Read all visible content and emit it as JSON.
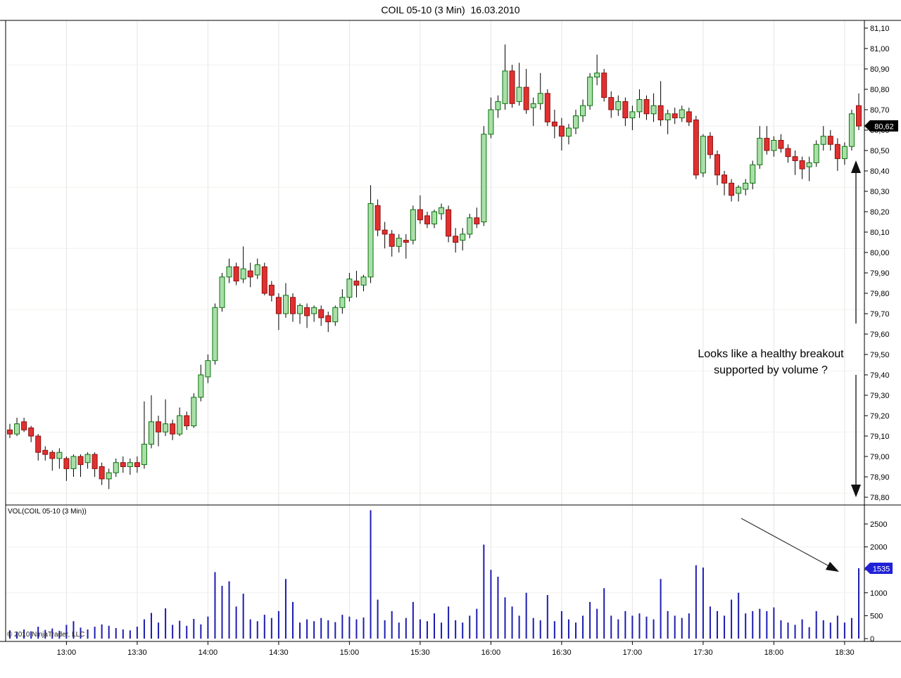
{
  "window": {
    "title": "COIL 05-10 (3 Min)  16.03.2010"
  },
  "volume_pane": {
    "indicator_label": "VOL(COIL 05-10 (3 Min))",
    "copyright": "© 2010 NinjaTrader, LLC"
  },
  "annotation": {
    "line1": "Looks like a healthy breakout",
    "line2": "supported by volume ?"
  },
  "price_axis": {
    "ticks": [
      "81,10",
      "81,00",
      "80,90",
      "80,80",
      "80,70",
      "80,60",
      "80,50",
      "80,40",
      "80,30",
      "80,20",
      "80,10",
      "80,00",
      "79,90",
      "79,80",
      "79,70",
      "79,60",
      "79,50",
      "79,40",
      "79,30",
      "79,20",
      "79,10",
      "79,00",
      "78,90",
      "78,80"
    ],
    "tag": "80,62"
  },
  "volume_axis": {
    "ticks": [
      "2500",
      "2000",
      "1500",
      "1000",
      "500",
      "0"
    ],
    "tick_values": [
      2500,
      2000,
      1500,
      1000,
      500,
      0
    ],
    "tag": "1535"
  },
  "time_axis": {
    "ticks": [
      "13:00",
      "13:30",
      "14:00",
      "14:30",
      "15:00",
      "15:30",
      "16:00",
      "16:30",
      "17:00",
      "17:30",
      "18:00",
      "18:30"
    ]
  },
  "colors": {
    "up_fill": "#A9DFA9",
    "up_border": "#0A720A",
    "down_fill": "#E03030",
    "down_border": "#8F1010",
    "wick": "#000000",
    "volume_bar": "#1C1CB0",
    "grid_vertical": "#E5E5E5",
    "grid_horizontal": "#F3F0EB",
    "price_tag_bg": "#000000",
    "volume_tag_bg": "#2121D6"
  },
  "chart_data": {
    "type": "candlestick_with_volume",
    "title": "COIL 05-10 (3 Min)  16.03.2010",
    "instrument": "COIL 05-10",
    "interval": "3 Min",
    "date": "16.03.2010",
    "price_axis_range": [
      78.75,
      81.15
    ],
    "price_tick_step": 0.1,
    "volume_axis_range": [
      0,
      2800
    ],
    "volume_tick_step": 500,
    "last_price": 80.62,
    "last_volume": 1535,
    "price_gridlines": [
      80.92,
      80.62,
      80.32,
      80.02,
      79.72,
      79.42,
      79.12,
      78.82
    ],
    "volume_gridlines": [
      1000,
      2000
    ],
    "bars_format": [
      "time",
      "open",
      "high",
      "low",
      "close",
      "volume"
    ],
    "bars": [
      [
        "12:36",
        79.13,
        79.16,
        79.09,
        79.11,
        180
      ],
      [
        "12:39",
        79.11,
        79.19,
        79.1,
        79.16,
        150
      ],
      [
        "12:42",
        79.17,
        79.19,
        79.12,
        79.13,
        200
      ],
      [
        "12:45",
        79.14,
        79.15,
        79.07,
        79.1,
        160
      ],
      [
        "12:48",
        79.1,
        79.11,
        78.98,
        79.02,
        260
      ],
      [
        "12:51",
        79.03,
        79.05,
        78.98,
        79.01,
        190
      ],
      [
        "12:54",
        79.02,
        79.03,
        78.93,
        78.99,
        220
      ],
      [
        "12:57",
        78.99,
        79.04,
        78.94,
        79.02,
        170
      ],
      [
        "13:00",
        78.99,
        79.0,
        78.88,
        78.94,
        300
      ],
      [
        "13:03",
        78.94,
        79.01,
        78.9,
        79.0,
        380
      ],
      [
        "13:06",
        79.0,
        79.01,
        78.9,
        78.96,
        240
      ],
      [
        "13:09",
        78.97,
        79.02,
        78.94,
        79.01,
        200
      ],
      [
        "13:12",
        79.01,
        79.02,
        78.9,
        78.94,
        260
      ],
      [
        "13:15",
        78.95,
        78.97,
        78.86,
        78.89,
        310
      ],
      [
        "13:18",
        78.89,
        78.94,
        78.84,
        78.92,
        280
      ],
      [
        "13:21",
        78.92,
        78.99,
        78.9,
        78.97,
        230
      ],
      [
        "13:24",
        78.97,
        79.0,
        78.92,
        78.95,
        200
      ],
      [
        "13:27",
        78.95,
        78.99,
        78.91,
        78.97,
        180
      ],
      [
        "13:30",
        78.97,
        79.0,
        78.92,
        78.95,
        260
      ],
      [
        "13:33",
        78.96,
        79.27,
        78.94,
        79.06,
        420
      ],
      [
        "13:36",
        79.06,
        79.3,
        79.04,
        79.17,
        560
      ],
      [
        "13:39",
        79.17,
        79.2,
        79.05,
        79.12,
        350
      ],
      [
        "13:42",
        79.12,
        79.28,
        79.1,
        79.16,
        660
      ],
      [
        "13:45",
        79.16,
        79.18,
        79.08,
        79.11,
        300
      ],
      [
        "13:48",
        79.11,
        79.24,
        79.1,
        79.2,
        390
      ],
      [
        "13:51",
        79.2,
        79.22,
        79.13,
        79.15,
        280
      ],
      [
        "13:54",
        79.15,
        79.31,
        79.14,
        79.29,
        430
      ],
      [
        "13:57",
        79.29,
        79.45,
        79.27,
        79.4,
        310
      ],
      [
        "14:00",
        79.39,
        79.5,
        79.36,
        79.47,
        480
      ],
      [
        "14:03",
        79.47,
        79.75,
        79.45,
        79.73,
        1450
      ],
      [
        "14:06",
        79.73,
        79.9,
        79.71,
        79.88,
        1150
      ],
      [
        "14:09",
        79.88,
        79.97,
        79.85,
        79.93,
        1250
      ],
      [
        "14:12",
        79.93,
        79.95,
        79.84,
        79.86,
        700
      ],
      [
        "14:15",
        79.87,
        80.03,
        79.85,
        79.92,
        980
      ],
      [
        "14:18",
        79.91,
        79.95,
        79.83,
        79.88,
        420
      ],
      [
        "14:21",
        79.89,
        79.97,
        79.87,
        79.94,
        380
      ],
      [
        "14:24",
        79.93,
        79.95,
        79.79,
        79.8,
        520
      ],
      [
        "14:27",
        79.84,
        79.86,
        79.76,
        79.79,
        450
      ],
      [
        "14:30",
        79.78,
        79.8,
        79.62,
        79.7,
        600
      ],
      [
        "14:33",
        79.7,
        79.85,
        79.68,
        79.79,
        1300
      ],
      [
        "14:36",
        79.78,
        79.8,
        79.66,
        79.7,
        800
      ],
      [
        "14:39",
        79.7,
        79.75,
        79.65,
        79.74,
        350
      ],
      [
        "14:42",
        79.73,
        79.75,
        79.63,
        79.69,
        420
      ],
      [
        "14:45",
        79.7,
        79.74,
        79.66,
        79.73,
        380
      ],
      [
        "14:48",
        79.72,
        79.74,
        79.64,
        79.68,
        450
      ],
      [
        "14:51",
        79.69,
        79.71,
        79.61,
        79.66,
        400
      ],
      [
        "14:54",
        79.66,
        79.74,
        79.64,
        79.73,
        360
      ],
      [
        "14:57",
        79.73,
        79.82,
        79.7,
        79.78,
        520
      ],
      [
        "15:00",
        79.78,
        79.9,
        79.76,
        79.87,
        480
      ],
      [
        "15:03",
        79.86,
        79.91,
        79.78,
        79.84,
        420
      ],
      [
        "15:06",
        79.84,
        79.89,
        79.81,
        79.88,
        460
      ],
      [
        "15:09",
        79.88,
        80.33,
        79.85,
        80.24,
        2800
      ],
      [
        "15:12",
        80.23,
        80.26,
        80.08,
        80.11,
        850
      ],
      [
        "15:15",
        80.11,
        80.15,
        80.02,
        80.09,
        400
      ],
      [
        "15:18",
        80.09,
        80.11,
        79.98,
        80.03,
        600
      ],
      [
        "15:21",
        80.03,
        80.09,
        80.0,
        80.07,
        350
      ],
      [
        "15:24",
        80.06,
        80.09,
        79.97,
        80.05,
        450
      ],
      [
        "15:27",
        80.06,
        80.23,
        80.04,
        80.21,
        800
      ],
      [
        "15:30",
        80.21,
        80.28,
        80.14,
        80.16,
        420
      ],
      [
        "15:33",
        80.18,
        80.2,
        80.12,
        80.14,
        380
      ],
      [
        "15:36",
        80.14,
        80.21,
        80.12,
        80.2,
        550
      ],
      [
        "15:39",
        80.19,
        80.24,
        80.16,
        80.22,
        350
      ],
      [
        "15:42",
        80.21,
        80.23,
        80.05,
        80.08,
        700
      ],
      [
        "15:45",
        80.08,
        80.12,
        80.0,
        80.05,
        400
      ],
      [
        "15:48",
        80.06,
        80.12,
        80.01,
        80.09,
        350
      ],
      [
        "15:51",
        80.09,
        80.19,
        80.07,
        80.17,
        500
      ],
      [
        "15:54",
        80.17,
        80.22,
        80.12,
        80.14,
        650
      ],
      [
        "15:57",
        80.15,
        80.62,
        80.13,
        80.58,
        2050
      ],
      [
        "16:00",
        80.58,
        80.76,
        80.56,
        80.7,
        1500
      ],
      [
        "16:03",
        80.7,
        80.77,
        80.66,
        80.74,
        1350
      ],
      [
        "16:06",
        80.73,
        81.02,
        80.7,
        80.89,
        900
      ],
      [
        "16:09",
        80.89,
        80.92,
        80.71,
        80.73,
        700
      ],
      [
        "16:12",
        80.74,
        80.93,
        80.72,
        80.81,
        500
      ],
      [
        "16:15",
        80.81,
        80.9,
        80.68,
        80.7,
        1000
      ],
      [
        "16:18",
        80.71,
        80.76,
        80.62,
        80.73,
        450
      ],
      [
        "16:21",
        80.73,
        80.88,
        80.7,
        80.78,
        400
      ],
      [
        "16:24",
        80.78,
        80.8,
        80.62,
        80.64,
        950
      ],
      [
        "16:27",
        80.64,
        80.7,
        80.56,
        80.62,
        380
      ],
      [
        "16:30",
        80.62,
        80.66,
        80.5,
        80.57,
        600
      ],
      [
        "16:33",
        80.57,
        80.63,
        80.53,
        80.61,
        420
      ],
      [
        "16:36",
        80.61,
        80.7,
        80.58,
        80.67,
        350
      ],
      [
        "16:39",
        80.67,
        80.75,
        80.64,
        80.72,
        500
      ],
      [
        "16:42",
        80.72,
        80.88,
        80.7,
        80.86,
        800
      ],
      [
        "16:45",
        80.86,
        80.97,
        80.82,
        80.88,
        650
      ],
      [
        "16:48",
        80.88,
        80.9,
        80.74,
        80.76,
        1100
      ],
      [
        "16:51",
        80.76,
        80.79,
        80.66,
        80.7,
        500
      ],
      [
        "16:54",
        80.7,
        80.77,
        80.67,
        80.74,
        420
      ],
      [
        "16:57",
        80.74,
        80.76,
        80.62,
        80.66,
        600
      ],
      [
        "17:00",
        80.66,
        80.72,
        80.6,
        80.69,
        500
      ],
      [
        "17:03",
        80.69,
        80.8,
        80.66,
        80.75,
        550
      ],
      [
        "17:06",
        80.75,
        80.77,
        80.65,
        80.68,
        480
      ],
      [
        "17:09",
        80.68,
        80.78,
        80.64,
        80.72,
        420
      ],
      [
        "17:12",
        80.72,
        80.84,
        80.62,
        80.65,
        1300
      ],
      [
        "17:15",
        80.65,
        80.7,
        80.58,
        80.68,
        600
      ],
      [
        "17:18",
        80.68,
        80.71,
        80.63,
        80.66,
        500
      ],
      [
        "17:21",
        80.66,
        80.72,
        80.64,
        80.7,
        450
      ],
      [
        "17:24",
        80.69,
        80.71,
        80.62,
        80.64,
        550
      ],
      [
        "17:27",
        80.65,
        80.67,
        80.36,
        80.38,
        1600
      ],
      [
        "17:30",
        80.39,
        80.58,
        80.37,
        80.57,
        1550
      ],
      [
        "17:33",
        80.57,
        80.59,
        80.46,
        80.48,
        700
      ],
      [
        "17:36",
        80.48,
        80.5,
        80.33,
        80.38,
        600
      ],
      [
        "17:39",
        80.38,
        80.4,
        80.28,
        80.34,
        500
      ],
      [
        "17:42",
        80.34,
        80.36,
        80.25,
        80.28,
        850
      ],
      [
        "17:45",
        80.29,
        80.33,
        80.25,
        80.32,
        1000
      ],
      [
        "17:48",
        80.31,
        80.36,
        80.28,
        80.34,
        550
      ],
      [
        "17:51",
        80.34,
        80.45,
        80.31,
        80.43,
        600
      ],
      [
        "17:54",
        80.43,
        80.62,
        80.41,
        80.56,
        650
      ],
      [
        "17:57",
        80.56,
        80.62,
        80.48,
        80.5,
        600
      ],
      [
        "18:00",
        80.5,
        80.57,
        80.47,
        80.55,
        680
      ],
      [
        "18:03",
        80.55,
        80.58,
        80.49,
        80.51,
        400
      ],
      [
        "18:06",
        80.51,
        80.53,
        80.44,
        80.47,
        350
      ],
      [
        "18:09",
        80.47,
        80.5,
        80.38,
        80.45,
        300
      ],
      [
        "18:12",
        80.45,
        80.47,
        80.36,
        80.41,
        420
      ],
      [
        "18:15",
        80.42,
        80.47,
        80.35,
        80.44,
        250
      ],
      [
        "18:18",
        80.44,
        80.55,
        80.42,
        80.53,
        600
      ],
      [
        "18:21",
        80.53,
        80.62,
        80.5,
        80.57,
        400
      ],
      [
        "18:24",
        80.57,
        80.6,
        80.5,
        80.53,
        350
      ],
      [
        "18:27",
        80.53,
        80.56,
        80.4,
        80.46,
        500
      ],
      [
        "18:30",
        80.46,
        80.54,
        80.43,
        80.52,
        350
      ],
      [
        "18:33",
        80.52,
        80.7,
        80.5,
        80.68,
        450
      ],
      [
        "18:36",
        80.72,
        80.78,
        80.6,
        80.62,
        1535
      ]
    ]
  }
}
